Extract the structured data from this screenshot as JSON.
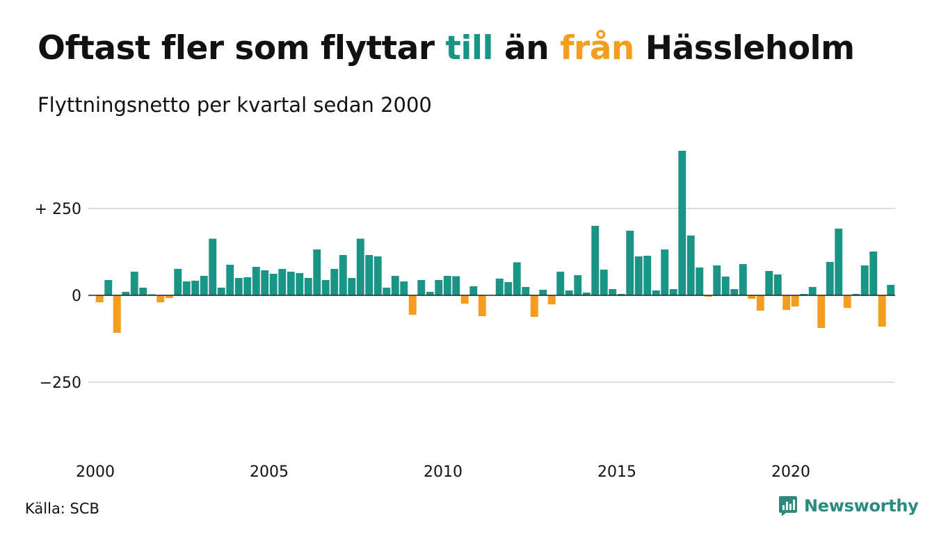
{
  "header": {
    "title_part1": "Oftast fler som flyttar ",
    "title_till": "till",
    "title_part2": " än ",
    "title_fran": "från",
    "title_part3": " Hässleholm",
    "subtitle": "Flyttningsnetto per kvartal sedan 2000"
  },
  "footer": {
    "source": "Källa: SCB",
    "brand": "Newsworthy"
  },
  "colors": {
    "positive": "#1a9585",
    "negative": "#f59d1c",
    "grid": "#dddddd",
    "zero_line": "#222222",
    "brand": "#2d8a7e"
  },
  "chart_data": {
    "type": "bar",
    "title": "Oftast fler som flyttar till än från Hässleholm",
    "subtitle": "Flyttningsnetto per kvartal sedan 2000",
    "xlabel": "",
    "ylabel": "",
    "ylim": [
      -450,
      430
    ],
    "y_ticks": [
      {
        "value": 250,
        "label": "+ 250"
      },
      {
        "value": 0,
        "label": "0"
      },
      {
        "value": -250,
        "label": "−250"
      }
    ],
    "x_ticks": [
      {
        "year": 2000,
        "label": "2000"
      },
      {
        "year": 2005,
        "label": "2005"
      },
      {
        "year": 2010,
        "label": "2010"
      },
      {
        "year": 2015,
        "label": "2015"
      },
      {
        "year": 2020,
        "label": "2020"
      }
    ],
    "grid": true,
    "legend": "none",
    "start": {
      "year": 2000,
      "quarter": 1
    },
    "values": [
      -20,
      44,
      -108,
      10,
      68,
      22,
      3,
      -20,
      -8,
      76,
      40,
      42,
      56,
      163,
      22,
      88,
      50,
      52,
      82,
      72,
      62,
      76,
      68,
      64,
      50,
      132,
      44,
      76,
      116,
      50,
      163,
      116,
      112,
      22,
      56,
      40,
      -56,
      44,
      10,
      44,
      56,
      55,
      -24,
      26,
      -60,
      0,
      48,
      38,
      95,
      24,
      -62,
      16,
      -26,
      68,
      14,
      58,
      8,
      200,
      74,
      18,
      4,
      186,
      112,
      114,
      14,
      132,
      18,
      416,
      172,
      80,
      -4,
      86,
      54,
      18,
      90,
      -10,
      -44,
      70,
      60,
      -42,
      -32,
      4,
      24,
      -94,
      96,
      192,
      -36,
      4,
      86,
      126,
      -90,
      30
    ]
  }
}
